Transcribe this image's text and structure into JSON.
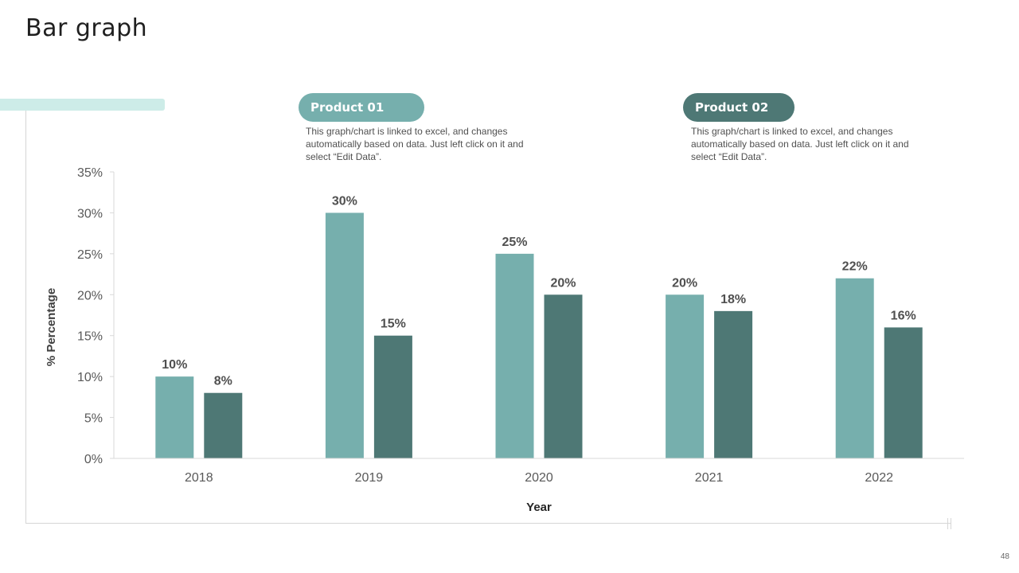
{
  "slide": {
    "title": "Bar graph",
    "page_number": "48"
  },
  "legend": {
    "product1": {
      "label": "Product 01",
      "description": "This graph/chart is linked to excel, and changes automatically based on data. Just left click on it and select “Edit Data”."
    },
    "product2": {
      "label": "Product 02",
      "description": "This graph/chart is linked to excel, and changes automatically based on data. Just left click on it and select “Edit Data”."
    }
  },
  "colors": {
    "product1": "#76afad",
    "product2": "#4e7875",
    "accent": "#cdece8"
  },
  "chart_data": {
    "type": "bar",
    "title": "Bar graph",
    "xlabel": "Year",
    "ylabel": "% Percentage",
    "categories": [
      "2018",
      "2019",
      "2020",
      "2021",
      "2022"
    ],
    "series": [
      {
        "name": "Product 01",
        "values": [
          10,
          30,
          25,
          20,
          22
        ]
      },
      {
        "name": "Product 02",
        "values": [
          8,
          15,
          20,
          18,
          16
        ]
      }
    ],
    "ylim": [
      0,
      35
    ],
    "yticks": [
      0,
      5,
      10,
      15,
      20,
      25,
      30,
      35
    ],
    "ytick_suffix": "%",
    "data_label_suffix": "%",
    "grid": false,
    "legend_position": "top"
  }
}
